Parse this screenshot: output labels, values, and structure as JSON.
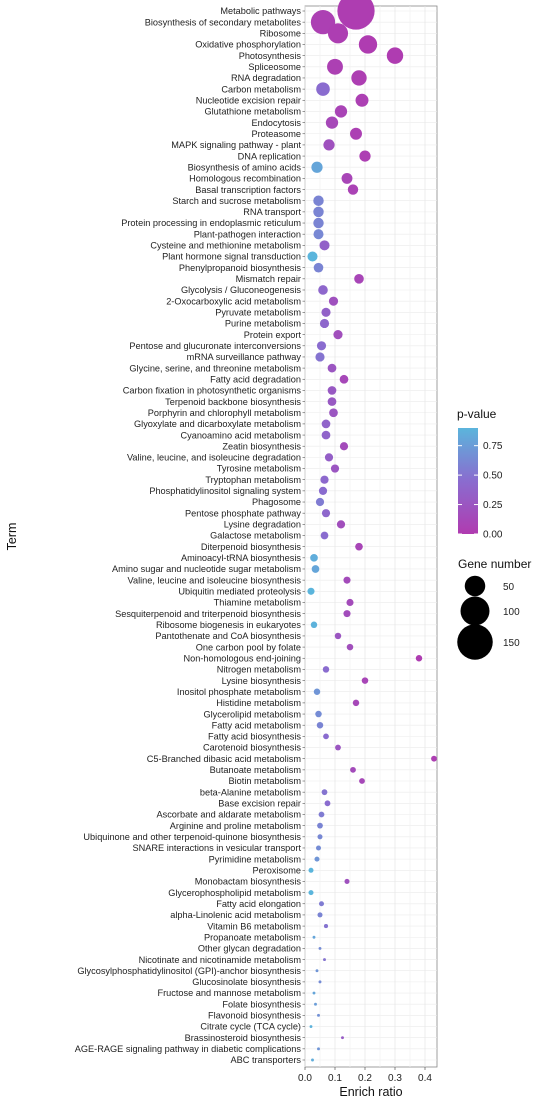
{
  "chart_data": {
    "type": "scatter",
    "xlabel": "Enrich ratio",
    "ylabel": "Term",
    "xlim": [
      0,
      0.44
    ],
    "x_ticks": [
      "0.0",
      "0.1",
      "0.2",
      "0.3",
      "0.4"
    ],
    "x_tick_values": [
      0,
      0.1,
      0.2,
      0.3,
      0.4
    ],
    "grid": true,
    "color_legend": {
      "title": "p-value",
      "ticks": [
        "0.75",
        "0.50",
        "0.25",
        "0.00"
      ],
      "tick_values": [
        0.75,
        0.5,
        0.25,
        0.0
      ],
      "range": [
        0,
        0.9
      ],
      "low_color": "#B03BB0",
      "high_color": "#5BB5DC"
    },
    "size_legend": {
      "title": "Gene number",
      "ticks": [
        "50",
        "100",
        "150"
      ],
      "tick_values": [
        50,
        100,
        150
      ]
    },
    "points": [
      {
        "term": "Metabolic pathways",
        "enrich_ratio": 0.17,
        "gene_number": 165,
        "p_value": 0.02
      },
      {
        "term": "Biosynthesis of secondary metabolites",
        "enrich_ratio": 0.06,
        "gene_number": 70,
        "p_value": 0.05
      },
      {
        "term": "Ribosome",
        "enrich_ratio": 0.11,
        "gene_number": 48,
        "p_value": 0.03
      },
      {
        "term": "Oxidative phosphorylation",
        "enrich_ratio": 0.21,
        "gene_number": 40,
        "p_value": 0.01
      },
      {
        "term": "Photosynthesis",
        "enrich_ratio": 0.3,
        "gene_number": 32,
        "p_value": 0.01
      },
      {
        "term": "Spliceosome",
        "enrich_ratio": 0.1,
        "gene_number": 30,
        "p_value": 0.05
      },
      {
        "term": "RNA degradation",
        "enrich_ratio": 0.18,
        "gene_number": 28,
        "p_value": 0.03
      },
      {
        "term": "Carbon metabolism",
        "enrich_ratio": 0.06,
        "gene_number": 22,
        "p_value": 0.45
      },
      {
        "term": "Nucleotide excision repair",
        "enrich_ratio": 0.19,
        "gene_number": 20,
        "p_value": 0.05
      },
      {
        "term": "Glutathione metabolism",
        "enrich_ratio": 0.12,
        "gene_number": 18,
        "p_value": 0.08
      },
      {
        "term": "Endocytosis",
        "enrich_ratio": 0.09,
        "gene_number": 18,
        "p_value": 0.12
      },
      {
        "term": "Proteasome",
        "enrich_ratio": 0.17,
        "gene_number": 17,
        "p_value": 0.05
      },
      {
        "term": "MAPK signaling pathway - plant",
        "enrich_ratio": 0.08,
        "gene_number": 15,
        "p_value": 0.2
      },
      {
        "term": "DNA replication",
        "enrich_ratio": 0.2,
        "gene_number": 15,
        "p_value": 0.04
      },
      {
        "term": "Biosynthesis of amino acids",
        "enrich_ratio": 0.04,
        "gene_number": 15,
        "p_value": 0.8
      },
      {
        "term": "Homologous recombination",
        "enrich_ratio": 0.14,
        "gene_number": 14,
        "p_value": 0.1
      },
      {
        "term": "Basal transcription factors",
        "enrich_ratio": 0.16,
        "gene_number": 13,
        "p_value": 0.07
      },
      {
        "term": "Starch and sucrose metabolism",
        "enrich_ratio": 0.045,
        "gene_number": 13,
        "p_value": 0.6
      },
      {
        "term": "RNA transport",
        "enrich_ratio": 0.045,
        "gene_number": 13,
        "p_value": 0.6
      },
      {
        "term": "Protein processing in endoplasmic reticulum",
        "enrich_ratio": 0.045,
        "gene_number": 13,
        "p_value": 0.6
      },
      {
        "term": "Plant-pathogen interaction",
        "enrich_ratio": 0.045,
        "gene_number": 12,
        "p_value": 0.62
      },
      {
        "term": "Cysteine and methionine metabolism",
        "enrich_ratio": 0.065,
        "gene_number": 12,
        "p_value": 0.35
      },
      {
        "term": "Plant hormone signal transduction",
        "enrich_ratio": 0.025,
        "gene_number": 12,
        "p_value": 0.9
      },
      {
        "term": "Phenylpropanoid biosynthesis",
        "enrich_ratio": 0.045,
        "gene_number": 11,
        "p_value": 0.6
      },
      {
        "term": "Mismatch repair",
        "enrich_ratio": 0.18,
        "gene_number": 11,
        "p_value": 0.1
      },
      {
        "term": "Glycolysis / Gluconeogenesis",
        "enrich_ratio": 0.06,
        "gene_number": 11,
        "p_value": 0.4
      },
      {
        "term": "2-Oxocarboxylic acid metabolism",
        "enrich_ratio": 0.095,
        "gene_number": 10,
        "p_value": 0.2
      },
      {
        "term": "Pyruvate metabolism",
        "enrich_ratio": 0.07,
        "gene_number": 10,
        "p_value": 0.35
      },
      {
        "term": "Purine metabolism",
        "enrich_ratio": 0.065,
        "gene_number": 10,
        "p_value": 0.4
      },
      {
        "term": "Protein export",
        "enrich_ratio": 0.11,
        "gene_number": 10,
        "p_value": 0.18
      },
      {
        "term": "Pentose and glucuronate interconversions",
        "enrich_ratio": 0.055,
        "gene_number": 10,
        "p_value": 0.45
      },
      {
        "term": "mRNA surveillance pathway",
        "enrich_ratio": 0.05,
        "gene_number": 10,
        "p_value": 0.5
      },
      {
        "term": "Glycine, serine, and threonine metabolism",
        "enrich_ratio": 0.09,
        "gene_number": 9,
        "p_value": 0.25
      },
      {
        "term": "Fatty acid degradation",
        "enrich_ratio": 0.13,
        "gene_number": 9,
        "p_value": 0.12
      },
      {
        "term": "Carbon fixation in photosynthetic organisms",
        "enrich_ratio": 0.09,
        "gene_number": 9,
        "p_value": 0.28
      },
      {
        "term": "Terpenoid backbone biosynthesis",
        "enrich_ratio": 0.09,
        "gene_number": 9,
        "p_value": 0.28
      },
      {
        "term": "Porphyrin and chlorophyll metabolism",
        "enrich_ratio": 0.095,
        "gene_number": 9,
        "p_value": 0.25
      },
      {
        "term": "Glyoxylate and dicarboxylate metabolism",
        "enrich_ratio": 0.07,
        "gene_number": 9,
        "p_value": 0.38
      },
      {
        "term": "Cyanoamino acid metabolism",
        "enrich_ratio": 0.07,
        "gene_number": 9,
        "p_value": 0.38
      },
      {
        "term": "Zeatin biosynthesis",
        "enrich_ratio": 0.13,
        "gene_number": 8,
        "p_value": 0.15
      },
      {
        "term": "Valine, leucine, and isoleucine degradation",
        "enrich_ratio": 0.08,
        "gene_number": 8,
        "p_value": 0.33
      },
      {
        "term": "Tyrosine metabolism",
        "enrich_ratio": 0.1,
        "gene_number": 8,
        "p_value": 0.25
      },
      {
        "term": "Tryptophan metabolism",
        "enrich_ratio": 0.065,
        "gene_number": 8,
        "p_value": 0.42
      },
      {
        "term": "Phosphatidylinositol signaling system",
        "enrich_ratio": 0.06,
        "gene_number": 8,
        "p_value": 0.45
      },
      {
        "term": "Phagosome",
        "enrich_ratio": 0.05,
        "gene_number": 8,
        "p_value": 0.55
      },
      {
        "term": "Pentose phosphate pathway",
        "enrich_ratio": 0.07,
        "gene_number": 8,
        "p_value": 0.4
      },
      {
        "term": "Lysine degradation",
        "enrich_ratio": 0.12,
        "gene_number": 8,
        "p_value": 0.18
      },
      {
        "term": "Galactose metabolism",
        "enrich_ratio": 0.065,
        "gene_number": 7,
        "p_value": 0.45
      },
      {
        "term": "Diterpenoid biosynthesis",
        "enrich_ratio": 0.18,
        "gene_number": 7,
        "p_value": 0.1
      },
      {
        "term": "Aminoacyl-tRNA biosynthesis",
        "enrich_ratio": 0.03,
        "gene_number": 7,
        "p_value": 0.85
      },
      {
        "term": "Amino sugar and nucleotide sugar metabolism",
        "enrich_ratio": 0.035,
        "gene_number": 7,
        "p_value": 0.8
      },
      {
        "term": "Valine, leucine and isoleucine biosynthesis",
        "enrich_ratio": 0.14,
        "gene_number": 6,
        "p_value": 0.15
      },
      {
        "term": "Ubiquitin mediated proteolysis",
        "enrich_ratio": 0.02,
        "gene_number": 6,
        "p_value": 0.9
      },
      {
        "term": "Thiamine metabolism",
        "enrich_ratio": 0.15,
        "gene_number": 6,
        "p_value": 0.15
      },
      {
        "term": "Sesquiterpenoid and triterpenoid biosynthesis",
        "enrich_ratio": 0.14,
        "gene_number": 6,
        "p_value": 0.16
      },
      {
        "term": "Ribosome biogenesis in eukaryotes",
        "enrich_ratio": 0.03,
        "gene_number": 5,
        "p_value": 0.88
      },
      {
        "term": "Pantothenate and CoA biosynthesis",
        "enrich_ratio": 0.11,
        "gene_number": 5,
        "p_value": 0.25
      },
      {
        "term": "One carbon pool by folate",
        "enrich_ratio": 0.15,
        "gene_number": 5,
        "p_value": 0.18
      },
      {
        "term": "Non-homologous end-joining",
        "enrich_ratio": 0.38,
        "gene_number": 5,
        "p_value": 0.02
      },
      {
        "term": "Nitrogen metabolism",
        "enrich_ratio": 0.07,
        "gene_number": 5,
        "p_value": 0.45
      },
      {
        "term": "Lysine biosynthesis",
        "enrich_ratio": 0.2,
        "gene_number": 5,
        "p_value": 0.1
      },
      {
        "term": "Inositol phosphate metabolism",
        "enrich_ratio": 0.04,
        "gene_number": 5,
        "p_value": 0.7
      },
      {
        "term": "Histidine metabolism",
        "enrich_ratio": 0.17,
        "gene_number": 5,
        "p_value": 0.12
      },
      {
        "term": "Glycerolipid metabolism",
        "enrich_ratio": 0.045,
        "gene_number": 5,
        "p_value": 0.65
      },
      {
        "term": "Fatty acid metabolism",
        "enrich_ratio": 0.05,
        "gene_number": 5,
        "p_value": 0.6
      },
      {
        "term": "Fatty acid biosynthesis",
        "enrich_ratio": 0.07,
        "gene_number": 4,
        "p_value": 0.45
      },
      {
        "term": "Carotenoid biosynthesis",
        "enrich_ratio": 0.11,
        "gene_number": 4,
        "p_value": 0.25
      },
      {
        "term": "C5-Branched dibasic acid metabolism",
        "enrich_ratio": 0.43,
        "gene_number": 4,
        "p_value": 0.03
      },
      {
        "term": "Butanoate metabolism",
        "enrich_ratio": 0.16,
        "gene_number": 4,
        "p_value": 0.15
      },
      {
        "term": "Biotin metabolism",
        "enrich_ratio": 0.19,
        "gene_number": 4,
        "p_value": 0.12
      },
      {
        "term": "beta-Alanine metabolism",
        "enrich_ratio": 0.065,
        "gene_number": 4,
        "p_value": 0.5
      },
      {
        "term": "Base excision repair",
        "enrich_ratio": 0.075,
        "gene_number": 4,
        "p_value": 0.45
      },
      {
        "term": "Ascorbate and aldarate metabolism",
        "enrich_ratio": 0.055,
        "gene_number": 4,
        "p_value": 0.55
      },
      {
        "term": "Arginine and proline metabolism",
        "enrich_ratio": 0.05,
        "gene_number": 4,
        "p_value": 0.6
      },
      {
        "term": "Ubiquinone and other terpenoid-quinone biosynthesis",
        "enrich_ratio": 0.05,
        "gene_number": 3,
        "p_value": 0.62
      },
      {
        "term": "SNARE interactions in vesicular transport",
        "enrich_ratio": 0.045,
        "gene_number": 3,
        "p_value": 0.65
      },
      {
        "term": "Pyrimidine metabolism",
        "enrich_ratio": 0.04,
        "gene_number": 3,
        "p_value": 0.7
      },
      {
        "term": "Peroxisome",
        "enrich_ratio": 0.02,
        "gene_number": 3,
        "p_value": 0.9
      },
      {
        "term": "Monobactam biosynthesis",
        "enrich_ratio": 0.14,
        "gene_number": 3,
        "p_value": 0.2
      },
      {
        "term": "Glycerophospholipid metabolism",
        "enrich_ratio": 0.02,
        "gene_number": 3,
        "p_value": 0.9
      },
      {
        "term": "Fatty acid elongation",
        "enrich_ratio": 0.055,
        "gene_number": 3,
        "p_value": 0.55
      },
      {
        "term": "alpha-Linolenic acid metabolism",
        "enrich_ratio": 0.05,
        "gene_number": 3,
        "p_value": 0.6
      },
      {
        "term": "Vitamin B6 metabolism",
        "enrich_ratio": 0.07,
        "gene_number": 2,
        "p_value": 0.5
      },
      {
        "term": "Propanoate metabolism",
        "enrich_ratio": 0.03,
        "gene_number": 1,
        "p_value": 0.8
      },
      {
        "term": "Other glycan degradation",
        "enrich_ratio": 0.05,
        "gene_number": 1,
        "p_value": 0.65
      },
      {
        "term": "Nicotinate and nicotinamide metabolism",
        "enrich_ratio": 0.065,
        "gene_number": 1,
        "p_value": 0.5
      },
      {
        "term": "Glycosylphosphatidylinositol (GPI)-anchor biosynthesis",
        "enrich_ratio": 0.04,
        "gene_number": 1,
        "p_value": 0.7
      },
      {
        "term": "Glucosinolate biosynthesis",
        "enrich_ratio": 0.05,
        "gene_number": 1,
        "p_value": 0.65
      },
      {
        "term": "Fructose and mannose metabolism",
        "enrich_ratio": 0.03,
        "gene_number": 1,
        "p_value": 0.8
      },
      {
        "term": "Folate biosynthesis",
        "enrich_ratio": 0.035,
        "gene_number": 1,
        "p_value": 0.75
      },
      {
        "term": "Flavonoid biosynthesis",
        "enrich_ratio": 0.045,
        "gene_number": 1,
        "p_value": 0.68
      },
      {
        "term": "Citrate cycle (TCA cycle)",
        "enrich_ratio": 0.02,
        "gene_number": 1,
        "p_value": 0.88
      },
      {
        "term": "Brassinosteroid biosynthesis",
        "enrich_ratio": 0.125,
        "gene_number": 1,
        "p_value": 0.3
      },
      {
        "term": "AGE-RAGE signaling pathway in diabetic complications",
        "enrich_ratio": 0.045,
        "gene_number": 1,
        "p_value": 0.7
      },
      {
        "term": "ABC transporters",
        "enrich_ratio": 0.025,
        "gene_number": 1,
        "p_value": 0.85
      }
    ]
  }
}
